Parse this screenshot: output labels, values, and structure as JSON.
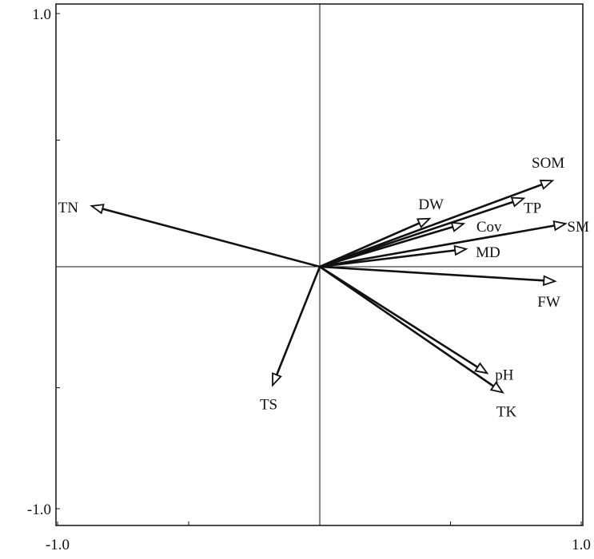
{
  "chart_data": {
    "type": "biplot",
    "xlim": [
      -1.0,
      1.0
    ],
    "ylim": [
      -1.0,
      1.0
    ],
    "x_ticks": [
      {
        "value": -1.0,
        "label": "-1.0"
      },
      {
        "value": 1.0,
        "label": "1.0"
      }
    ],
    "y_ticks": [
      {
        "value": 1.0,
        "label": "1.0"
      },
      {
        "value": -1.0,
        "label": "-1.0"
      }
    ],
    "zero_lines": true,
    "vectors": [
      {
        "name": "TN",
        "x": -0.87,
        "y": 0.24
      },
      {
        "name": "SOM",
        "x": 0.89,
        "y": 0.34
      },
      {
        "name": "TP",
        "x": 0.78,
        "y": 0.27
      },
      {
        "name": "SM",
        "x": 0.94,
        "y": 0.17
      },
      {
        "name": "DW",
        "x": 0.42,
        "y": 0.19
      },
      {
        "name": "Cov",
        "x": 0.55,
        "y": 0.17
      },
      {
        "name": "MD",
        "x": 0.56,
        "y": 0.07
      },
      {
        "name": "FW",
        "x": 0.9,
        "y": -0.06
      },
      {
        "name": "pH",
        "x": 0.64,
        "y": -0.44
      },
      {
        "name": "TK",
        "x": 0.7,
        "y": -0.52
      },
      {
        "name": "TS",
        "x": -0.18,
        "y": -0.49
      }
    ]
  }
}
